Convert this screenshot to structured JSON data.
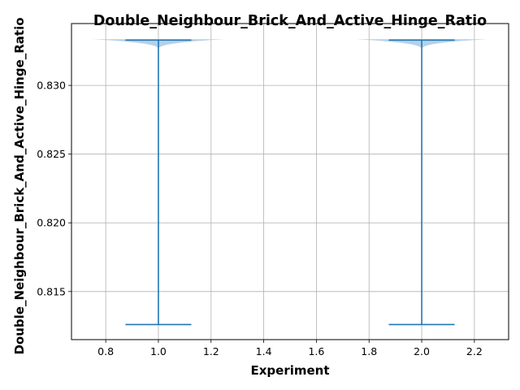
{
  "chart_data": {
    "type": "violin",
    "title": "Double_Neighbour_Brick_And_Active_Hinge_Ratio",
    "xlabel": "Experiment",
    "ylabel": "Double_Neighbour_Brick_And_Active_Hinge_Ratio",
    "xlim": [
      0.67,
      2.33
    ],
    "ylim": [
      0.8115,
      0.8345
    ],
    "xticks": [
      0.8,
      1.0,
      1.2,
      1.4,
      1.6,
      1.8,
      2.0,
      2.2
    ],
    "xtick_labels": [
      "0.8",
      "1.0",
      "1.2",
      "1.4",
      "1.6",
      "1.8",
      "2.0",
      "2.2"
    ],
    "yticks": [
      0.815,
      0.82,
      0.825,
      0.83
    ],
    "ytick_labels": [
      "0.815",
      "0.820",
      "0.825",
      "0.830"
    ],
    "grid": true,
    "colors": {
      "line": "#1f77b4",
      "fill": "#aac8e5",
      "grid": "#b0b0b0"
    },
    "violins": [
      {
        "position": 1.0,
        "min": 0.8126,
        "max": 0.8333,
        "peak": 0.8333,
        "max_half_width": 0.25
      },
      {
        "position": 2.0,
        "min": 0.8126,
        "max": 0.8333,
        "peak": 0.8333,
        "max_half_width": 0.25
      }
    ]
  }
}
